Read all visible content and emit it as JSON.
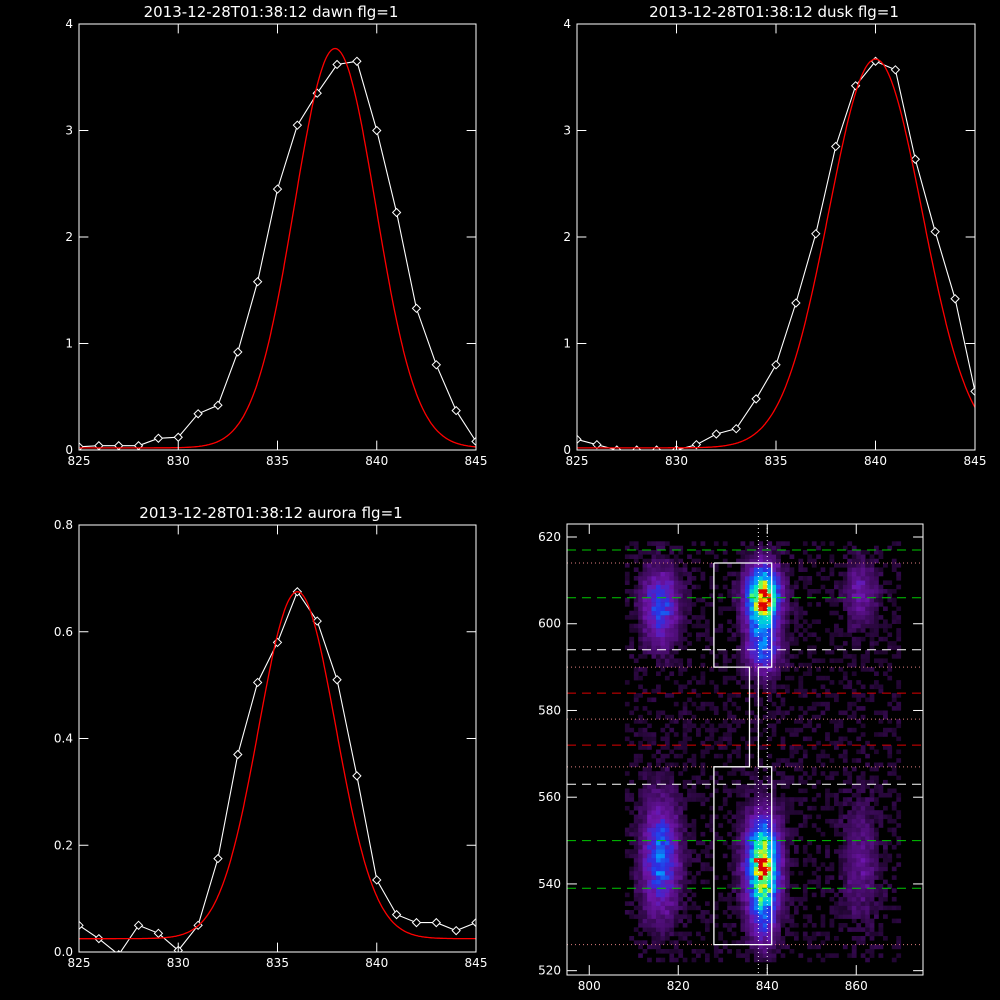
{
  "chart_data": [
    {
      "type": "line",
      "title": "2013-12-28T01:38:12 dawn flg=1",
      "xlim": [
        825,
        845
      ],
      "ylim": [
        0,
        4
      ],
      "xticks": [
        "825",
        "830",
        "835",
        "840",
        "845"
      ],
      "yticks": [
        "0",
        "1",
        "2",
        "3",
        "4"
      ],
      "series": [
        {
          "color": "#ffffff",
          "markers": "diamond",
          "x": [
            825,
            826,
            827,
            828,
            829,
            830,
            831,
            832,
            833,
            834,
            835,
            836,
            837,
            838,
            839,
            840,
            841,
            842,
            843,
            844,
            845
          ],
          "y": [
            0.03,
            0.04,
            0.04,
            0.04,
            0.11,
            0.12,
            0.34,
            0.42,
            0.92,
            1.58,
            2.45,
            3.05,
            3.35,
            3.62,
            3.65,
            3.0,
            2.23,
            1.33,
            0.8,
            0.37,
            0.08
          ]
        },
        {
          "color": "#ff0000",
          "fit": "gaussian",
          "amplitude": 3.75,
          "center": 837.9,
          "sigma": 2.05,
          "offset": 0.02
        }
      ]
    },
    {
      "type": "line",
      "title": "2013-12-28T01:38:12 dusk flg=1",
      "xlim": [
        825,
        845
      ],
      "ylim": [
        0,
        4
      ],
      "xticks": [
        "825",
        "830",
        "835",
        "840",
        "845"
      ],
      "yticks": [
        "0",
        "1",
        "2",
        "3",
        "4"
      ],
      "series": [
        {
          "color": "#ffffff",
          "markers": "diamond",
          "x": [
            825,
            826,
            827,
            828,
            829,
            830,
            831,
            832,
            833,
            834,
            835,
            836,
            837,
            838,
            839,
            840,
            841,
            842,
            843,
            844,
            845
          ],
          "y": [
            0.1,
            0.05,
            0.0,
            0.0,
            0.0,
            0.0,
            0.05,
            0.15,
            0.2,
            0.48,
            0.8,
            1.38,
            2.03,
            2.85,
            3.42,
            3.65,
            3.57,
            2.73,
            2.05,
            1.42,
            0.55
          ]
        },
        {
          "color": "#ff0000",
          "fit": "gaussian",
          "amplitude": 3.65,
          "center": 840.0,
          "sigma": 2.35,
          "offset": 0.02
        }
      ]
    },
    {
      "type": "line",
      "title": "2013-12-28T01:38:12 aurora flg=1",
      "xlim": [
        825,
        845
      ],
      "ylim": [
        0,
        0.8
      ],
      "xticks": [
        "825",
        "830",
        "835",
        "840",
        "845"
      ],
      "yticks": [
        "0.0",
        "0.2",
        "0.4",
        "0.6",
        "0.8"
      ],
      "series": [
        {
          "color": "#ffffff",
          "markers": "diamond",
          "x": [
            825,
            826,
            827,
            828,
            829,
            830,
            831,
            832,
            833,
            834,
            835,
            836,
            837,
            838,
            839,
            840,
            841,
            842,
            843,
            844,
            845
          ],
          "y": [
            0.05,
            0.025,
            -0.005,
            0.05,
            0.035,
            0.003,
            0.05,
            0.175,
            0.37,
            0.505,
            0.58,
            0.675,
            0.62,
            0.51,
            0.33,
            0.135,
            0.07,
            0.055,
            0.055,
            0.04,
            0.055
          ]
        },
        {
          "color": "#ff0000",
          "fit": "gaussian",
          "amplitude": 0.65,
          "center": 836.0,
          "sigma": 1.95,
          "offset": 0.025
        }
      ]
    },
    {
      "type": "heatmap",
      "title": "",
      "xlim": [
        795,
        875
      ],
      "ylim": [
        519,
        623
      ],
      "xticks": [
        "800",
        "820",
        "840",
        "860"
      ],
      "yticks": [
        "520",
        "540",
        "560",
        "580",
        "600",
        "620"
      ],
      "blobs": [
        {
          "x": 816,
          "y": 604,
          "sx": 2.8,
          "sy": 6.0,
          "amp": 0.42
        },
        {
          "x": 816,
          "y": 546,
          "sx": 2.8,
          "sy": 9.0,
          "amp": 0.48
        },
        {
          "x": 839,
          "y": 606,
          "sx": 2.6,
          "sy": 5.0,
          "amp": 1.0
        },
        {
          "x": 839,
          "y": 594,
          "sx": 2.6,
          "sy": 4.0,
          "amp": 0.4
        },
        {
          "x": 839,
          "y": 545,
          "sx": 2.6,
          "sy": 7.0,
          "amp": 0.9
        },
        {
          "x": 839,
          "y": 533,
          "sx": 2.2,
          "sy": 6.0,
          "amp": 0.3
        },
        {
          "x": 861,
          "y": 607,
          "sx": 2.5,
          "sy": 5.0,
          "amp": 0.22
        },
        {
          "x": 861,
          "y": 545,
          "sx": 2.6,
          "sy": 9.0,
          "amp": 0.18
        }
      ],
      "hlines": [
        {
          "y": 617,
          "color": "#00c800",
          "style": "dashed"
        },
        {
          "y": 606,
          "color": "#00c800",
          "style": "dashed"
        },
        {
          "y": 550,
          "color": "#00c800",
          "style": "dashed"
        },
        {
          "y": 539,
          "color": "#00c800",
          "style": "dashed"
        },
        {
          "y": 594,
          "color": "#ffffff",
          "style": "dashed"
        },
        {
          "y": 563,
          "color": "#ffffff",
          "style": "dashed"
        },
        {
          "y": 584,
          "color": "#dc0000",
          "style": "dashed"
        },
        {
          "y": 572,
          "color": "#dc0000",
          "style": "dashed"
        },
        {
          "y": 614,
          "color": "#e08080",
          "style": "dotted"
        },
        {
          "y": 590,
          "color": "#e08080",
          "style": "dotted"
        },
        {
          "y": 578,
          "color": "#e08080",
          "style": "dotted"
        },
        {
          "y": 567,
          "color": "#e08080",
          "style": "dotted"
        },
        {
          "y": 526,
          "color": "#e08080",
          "style": "dotted"
        }
      ],
      "vlines": [
        {
          "x": 838,
          "color": "#ffffff",
          "style": "dotted"
        },
        {
          "x": 840,
          "color": "#ffffff",
          "style": "dotted"
        }
      ],
      "outline": {
        "color": "#ffffff",
        "points": [
          [
            828,
            614
          ],
          [
            841,
            614
          ],
          [
            841,
            590
          ],
          [
            838,
            590
          ],
          [
            838,
            567
          ],
          [
            841,
            567
          ],
          [
            841,
            526
          ],
          [
            828,
            526
          ],
          [
            828,
            567
          ],
          [
            836,
            567
          ],
          [
            836,
            590
          ],
          [
            828,
            590
          ],
          [
            828,
            614
          ]
        ]
      }
    }
  ]
}
